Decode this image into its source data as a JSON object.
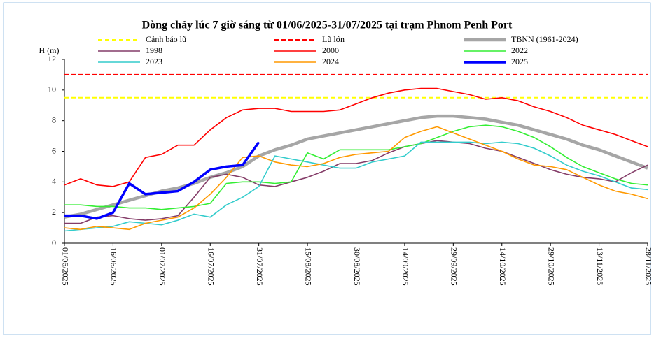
{
  "chart_data": {
    "type": "line",
    "title": "Dòng chảy lúc 7 giờ sáng từ 01/06/2025-31/07/2025 tại trạm Phnom Penh Port",
    "y_label": "H (m)",
    "categories": [
      "01/06/2025",
      null,
      null,
      "16/06/2025",
      null,
      null,
      "01/07/2025",
      null,
      null,
      "16/07/2025",
      null,
      null,
      "31/07/2025",
      null,
      null,
      "15/08/2025",
      null,
      null,
      "30/08/2025",
      null,
      null,
      "14/09/2025",
      null,
      null,
      "29/09/2025",
      null,
      null,
      "14/10/2025",
      null,
      null,
      "29/10/2025",
      null,
      null,
      "13/11/2025",
      null,
      null,
      "28/11/2025"
    ],
    "ylim": [
      0,
      12
    ],
    "yticks": [
      0,
      2,
      4,
      6,
      8,
      10,
      12
    ],
    "grid": false,
    "series": [
      {
        "name": "Cảnh báo lũ",
        "color": "#ffff00",
        "width": 2,
        "dash": true,
        "values": [
          9.5,
          9.5,
          9.5,
          9.5,
          9.5,
          9.5,
          9.5,
          9.5,
          9.5,
          9.5,
          9.5,
          9.5,
          9.5,
          9.5,
          9.5,
          9.5,
          9.5,
          9.5,
          9.5,
          9.5,
          9.5,
          9.5,
          9.5,
          9.5,
          9.5,
          9.5,
          9.5,
          9.5,
          9.5,
          9.5,
          9.5,
          9.5,
          9.5,
          9.5,
          9.5,
          9.5,
          9.5
        ]
      },
      {
        "name": "Lũ lớn",
        "color": "#ff0000",
        "width": 2,
        "dash": true,
        "values": [
          11,
          11,
          11,
          11,
          11,
          11,
          11,
          11,
          11,
          11,
          11,
          11,
          11,
          11,
          11,
          11,
          11,
          11,
          11,
          11,
          11,
          11,
          11,
          11,
          11,
          11,
          11,
          11,
          11,
          11,
          11,
          11,
          11,
          11,
          11,
          11,
          11
        ]
      },
      {
        "name": "TBNN (1961-2024)",
        "color": "#a6a6a6",
        "width": 4.5,
        "dash": false,
        "values": [
          1.7,
          1.9,
          2.2,
          2.5,
          2.8,
          3.1,
          3.4,
          3.6,
          3.9,
          4.3,
          4.6,
          5.0,
          5.7,
          6.1,
          6.4,
          6.8,
          7.0,
          7.2,
          7.4,
          7.6,
          7.8,
          8.0,
          8.2,
          8.3,
          8.3,
          8.2,
          8.1,
          7.9,
          7.7,
          7.4,
          7.1,
          6.8,
          6.4,
          6.1,
          5.7,
          5.3,
          4.9
        ]
      },
      {
        "name": "1998",
        "color": "#843c68",
        "width": 1.6,
        "dash": false,
        "values": [
          1.3,
          1.3,
          1.7,
          1.8,
          1.6,
          1.5,
          1.6,
          1.8,
          3.0,
          4.3,
          4.5,
          4.3,
          3.8,
          3.7,
          4.0,
          4.3,
          4.7,
          5.2,
          5.2,
          5.4,
          5.9,
          6.3,
          6.5,
          6.7,
          6.6,
          6.5,
          6.2,
          6.0,
          5.6,
          5.2,
          4.8,
          4.5,
          4.3,
          4.2,
          4.0,
          4.6,
          5.1
        ]
      },
      {
        "name": "2000",
        "color": "#ff0000",
        "width": 1.6,
        "dash": false,
        "values": [
          3.8,
          4.2,
          3.8,
          3.7,
          4.0,
          5.6,
          5.8,
          6.4,
          6.4,
          7.4,
          8.2,
          8.7,
          8.8,
          8.8,
          8.6,
          8.6,
          8.6,
          8.7,
          9.1,
          9.5,
          9.8,
          10.0,
          10.1,
          10.1,
          9.9,
          9.7,
          9.4,
          9.5,
          9.3,
          8.9,
          8.6,
          8.2,
          7.7,
          7.4,
          7.1,
          6.7,
          6.3
        ]
      },
      {
        "name": "2022",
        "color": "#33ee33",
        "width": 1.6,
        "dash": false,
        "values": [
          2.5,
          2.5,
          2.4,
          2.4,
          2.3,
          2.3,
          2.2,
          2.3,
          2.4,
          2.6,
          3.9,
          4.0,
          4.0,
          3.9,
          4.0,
          5.9,
          5.5,
          6.1,
          6.1,
          6.1,
          6.1,
          6.3,
          6.5,
          6.9,
          7.3,
          7.6,
          7.7,
          7.6,
          7.3,
          6.9,
          6.3,
          5.6,
          5.0,
          4.6,
          4.2,
          3.9,
          3.8
        ]
      },
      {
        "name": "2023",
        "color": "#33cccc",
        "width": 1.6,
        "dash": false,
        "values": [
          0.8,
          0.9,
          1.0,
          1.1,
          1.4,
          1.3,
          1.2,
          1.5,
          1.9,
          1.7,
          2.5,
          3.0,
          3.7,
          5.7,
          5.5,
          5.3,
          5.1,
          4.9,
          4.9,
          5.3,
          5.5,
          5.7,
          6.6,
          6.6,
          6.6,
          6.6,
          6.5,
          6.6,
          6.5,
          6.2,
          5.7,
          5.1,
          4.7,
          4.4,
          4.0,
          3.6,
          3.5
        ]
      },
      {
        "name": "2024",
        "color": "#ff9900",
        "width": 1.6,
        "dash": false,
        "values": [
          1.0,
          0.9,
          1.1,
          1.0,
          0.9,
          1.3,
          1.5,
          1.7,
          2.3,
          3.2,
          4.3,
          5.6,
          5.7,
          5.3,
          5.1,
          5.0,
          5.2,
          5.6,
          5.8,
          5.9,
          6.0,
          6.9,
          7.3,
          7.6,
          7.2,
          6.8,
          6.4,
          6.0,
          5.5,
          5.1,
          5.0,
          4.8,
          4.3,
          3.8,
          3.4,
          3.2,
          2.9
        ]
      },
      {
        "name": "2025",
        "color": "#0000ff",
        "width": 3.5,
        "dash": false,
        "values": [
          1.8,
          1.8,
          1.6,
          2.0,
          3.9,
          3.2,
          3.3,
          3.4,
          4.0,
          4.8,
          5.0,
          5.1,
          6.6,
          null,
          null,
          null,
          null,
          null,
          null,
          null,
          null,
          null,
          null,
          null,
          null,
          null,
          null,
          null,
          null,
          null,
          null,
          null,
          null,
          null,
          null,
          null,
          null
        ]
      }
    ]
  }
}
